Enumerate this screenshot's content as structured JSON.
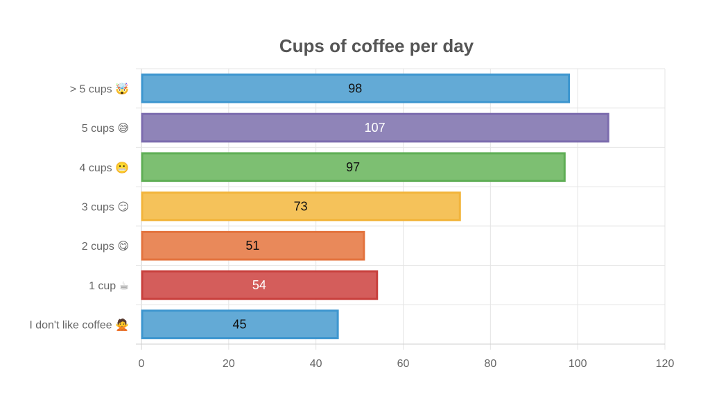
{
  "chart_data": {
    "type": "bar",
    "orientation": "horizontal",
    "title": "Cups of coffee per day",
    "categories": [
      "> 5 cups 🤯",
      "5 cups 😅",
      "4 cups 😬",
      "3 cups 😏",
      "2 cups 😋",
      "1 cup ☕",
      "I don't like coffee 🙅"
    ],
    "values": [
      98,
      107,
      97,
      73,
      51,
      54,
      45
    ],
    "colors": [
      "#36a2eb",
      "#9966ff",
      "#4bc0c0",
      "#ffcd56",
      "#ff9f40",
      "#ff6384",
      "#36a2eb"
    ],
    "bar_colors": [
      {
        "fill": "#63aad6",
        "stroke": "#3d96cf"
      },
      {
        "fill": "#8f84b8",
        "stroke": "#7c6cae"
      },
      {
        "fill": "#7dbf72",
        "stroke": "#5fae55"
      },
      {
        "fill": "#f5c25a",
        "stroke": "#f2b43b"
      },
      {
        "fill": "#e9895a",
        "stroke": "#e3733e"
      },
      {
        "fill": "#d45d5b",
        "stroke": "#c8403d"
      },
      {
        "fill": "#63aad6",
        "stroke": "#3d96cf"
      }
    ],
    "label_colors": [
      "#111111",
      "#ffffff",
      "#111111",
      "#111111",
      "#111111",
      "#ffffff",
      "#111111"
    ],
    "x_ticks": [
      "0",
      "20",
      "40",
      "60",
      "80",
      "100",
      "120"
    ],
    "xlim": [
      0,
      120
    ],
    "grid": true,
    "legend": "none"
  }
}
